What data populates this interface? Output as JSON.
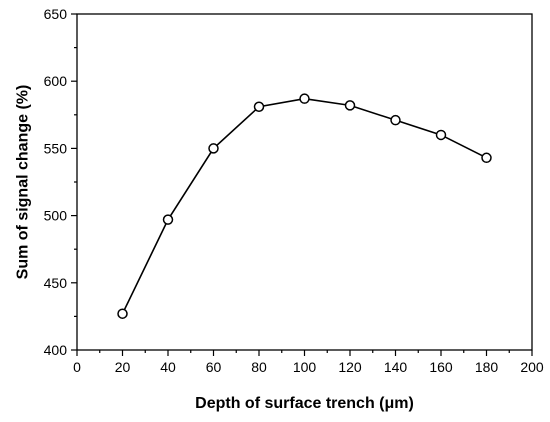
{
  "chart_data": {
    "type": "line",
    "xlabel": "Depth of surface trench (μm)",
    "ylabel": "Sum of signal change (%)",
    "xlim": [
      0,
      200
    ],
    "ylim": [
      400,
      650
    ],
    "xticks": [
      0,
      20,
      40,
      60,
      80,
      100,
      120,
      140,
      160,
      180,
      200
    ],
    "yticks": [
      400,
      450,
      500,
      550,
      600,
      650
    ],
    "grid": false,
    "marker": "open-circle",
    "series": [
      {
        "x": [
          20,
          40,
          60,
          80,
          100,
          120,
          140,
          160,
          180
        ],
        "y": [
          427,
          497,
          550,
          581,
          587,
          582,
          571,
          560,
          543
        ]
      }
    ]
  }
}
